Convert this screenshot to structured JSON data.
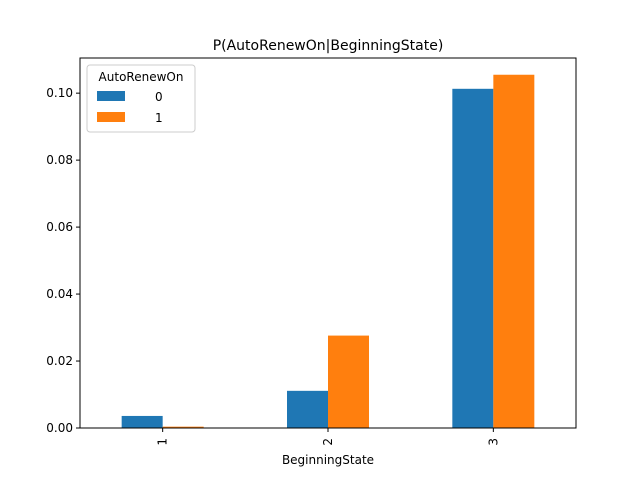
{
  "chart_data": {
    "type": "bar",
    "title": "P(AutoRenewOn|BeginningState)",
    "xlabel": "BeginningState",
    "ylabel": "",
    "categories": [
      "1",
      "2",
      "3"
    ],
    "series": [
      {
        "name": "0",
        "color": "#1f77b4",
        "values": [
          0.0036,
          0.0111,
          0.1013
        ]
      },
      {
        "name": "1",
        "color": "#ff7f0e",
        "values": [
          0.0004,
          0.0276,
          0.1055
        ]
      }
    ],
    "ylim": [
      0,
      0.1105
    ],
    "yticks": [
      0.0,
      0.02,
      0.04,
      0.06,
      0.08,
      0.1
    ],
    "ytick_labels": [
      "0.00",
      "0.02",
      "0.04",
      "0.06",
      "0.08",
      "0.10"
    ],
    "legend": {
      "title": "AutoRenewOn",
      "placement": "top-left"
    },
    "grid": false
  }
}
